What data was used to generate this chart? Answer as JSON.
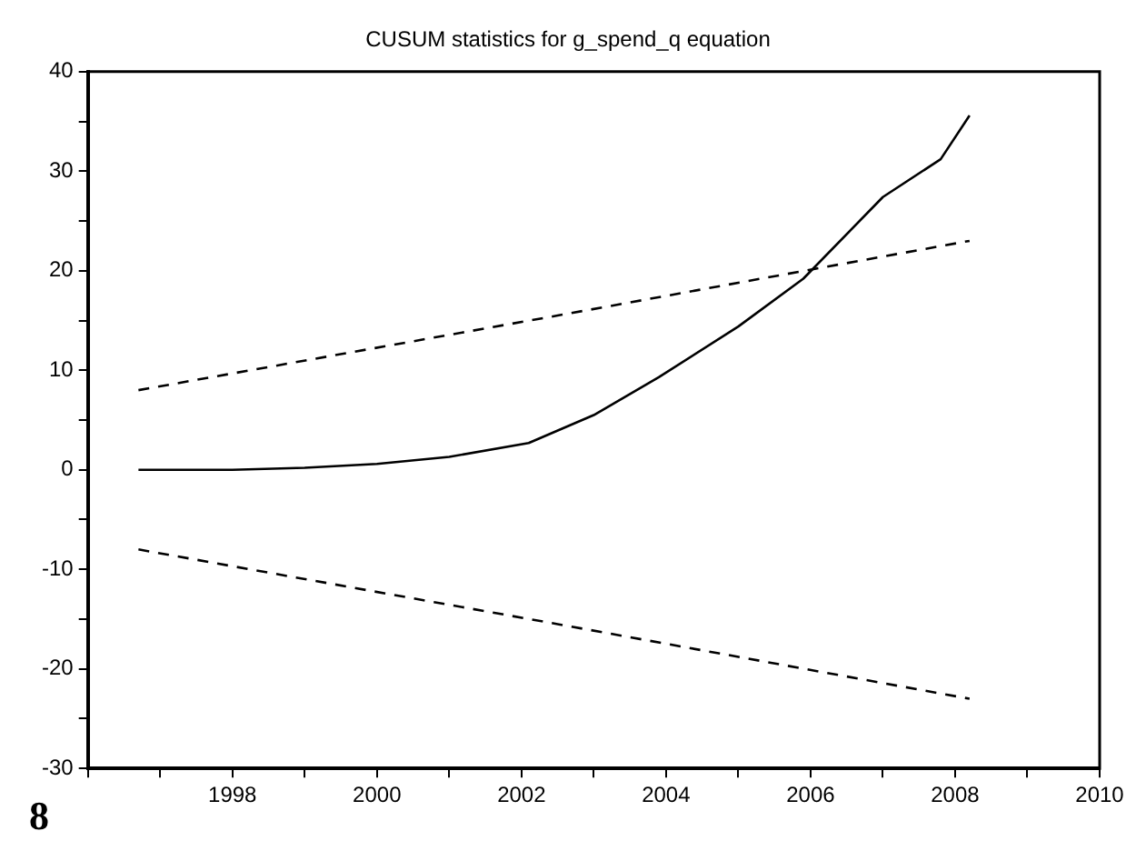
{
  "chart_data": {
    "type": "line",
    "title": "CUSUM statistics for g_spend_q equation",
    "annotations": [
      "8"
    ],
    "xlim": [
      1996,
      2010
    ],
    "xticks": [
      {
        "value": 1996,
        "label": null
      },
      {
        "value": 1997,
        "label": null
      },
      1998,
      {
        "value": 1999,
        "label": null
      },
      2000,
      {
        "value": 2001,
        "label": null
      },
      2002,
      {
        "value": 2003,
        "label": null
      },
      2004,
      {
        "value": 2005,
        "label": null
      },
      2006,
      {
        "value": 2007,
        "label": null
      },
      2008,
      {
        "value": 2009,
        "label": null
      },
      2010
    ],
    "ylim": [
      -30,
      40
    ],
    "yticks": [
      -30,
      {
        "value": -25,
        "label": null
      },
      -20,
      {
        "value": -15,
        "label": null
      },
      -10,
      {
        "value": -5,
        "label": null
      },
      0,
      {
        "value": 5,
        "label": null
      },
      10,
      {
        "value": 15,
        "label": null
      },
      20,
      {
        "value": 25,
        "label": null
      },
      30,
      {
        "value": 35,
        "label": null
      },
      40
    ],
    "grid": false,
    "legend": false,
    "marker": "none",
    "series": [
      {
        "color": "#000000",
        "line_style": "solid",
        "x": [
          1996.7,
          1998,
          1999,
          2000,
          2001,
          2002.1,
          2003,
          2003.9,
          2005,
          2005.9,
          2007,
          2007.8,
          2008.2
        ],
        "values": [
          0,
          0,
          0.2,
          0.6,
          1.3,
          2.7,
          5.5,
          9.3,
          14.4,
          19.2,
          27.4,
          31.2,
          35.6
        ]
      },
      {
        "color": "#000000",
        "line_style": "dashed",
        "x": [
          1996.7,
          2002.5,
          2008.2
        ],
        "values": [
          8,
          15.5,
          23
        ]
      },
      {
        "color": "#000000",
        "line_style": "dashed",
        "x": [
          1996.7,
          2002.5,
          2008.2
        ],
        "values": [
          -8,
          -15.5,
          -23
        ]
      }
    ]
  }
}
